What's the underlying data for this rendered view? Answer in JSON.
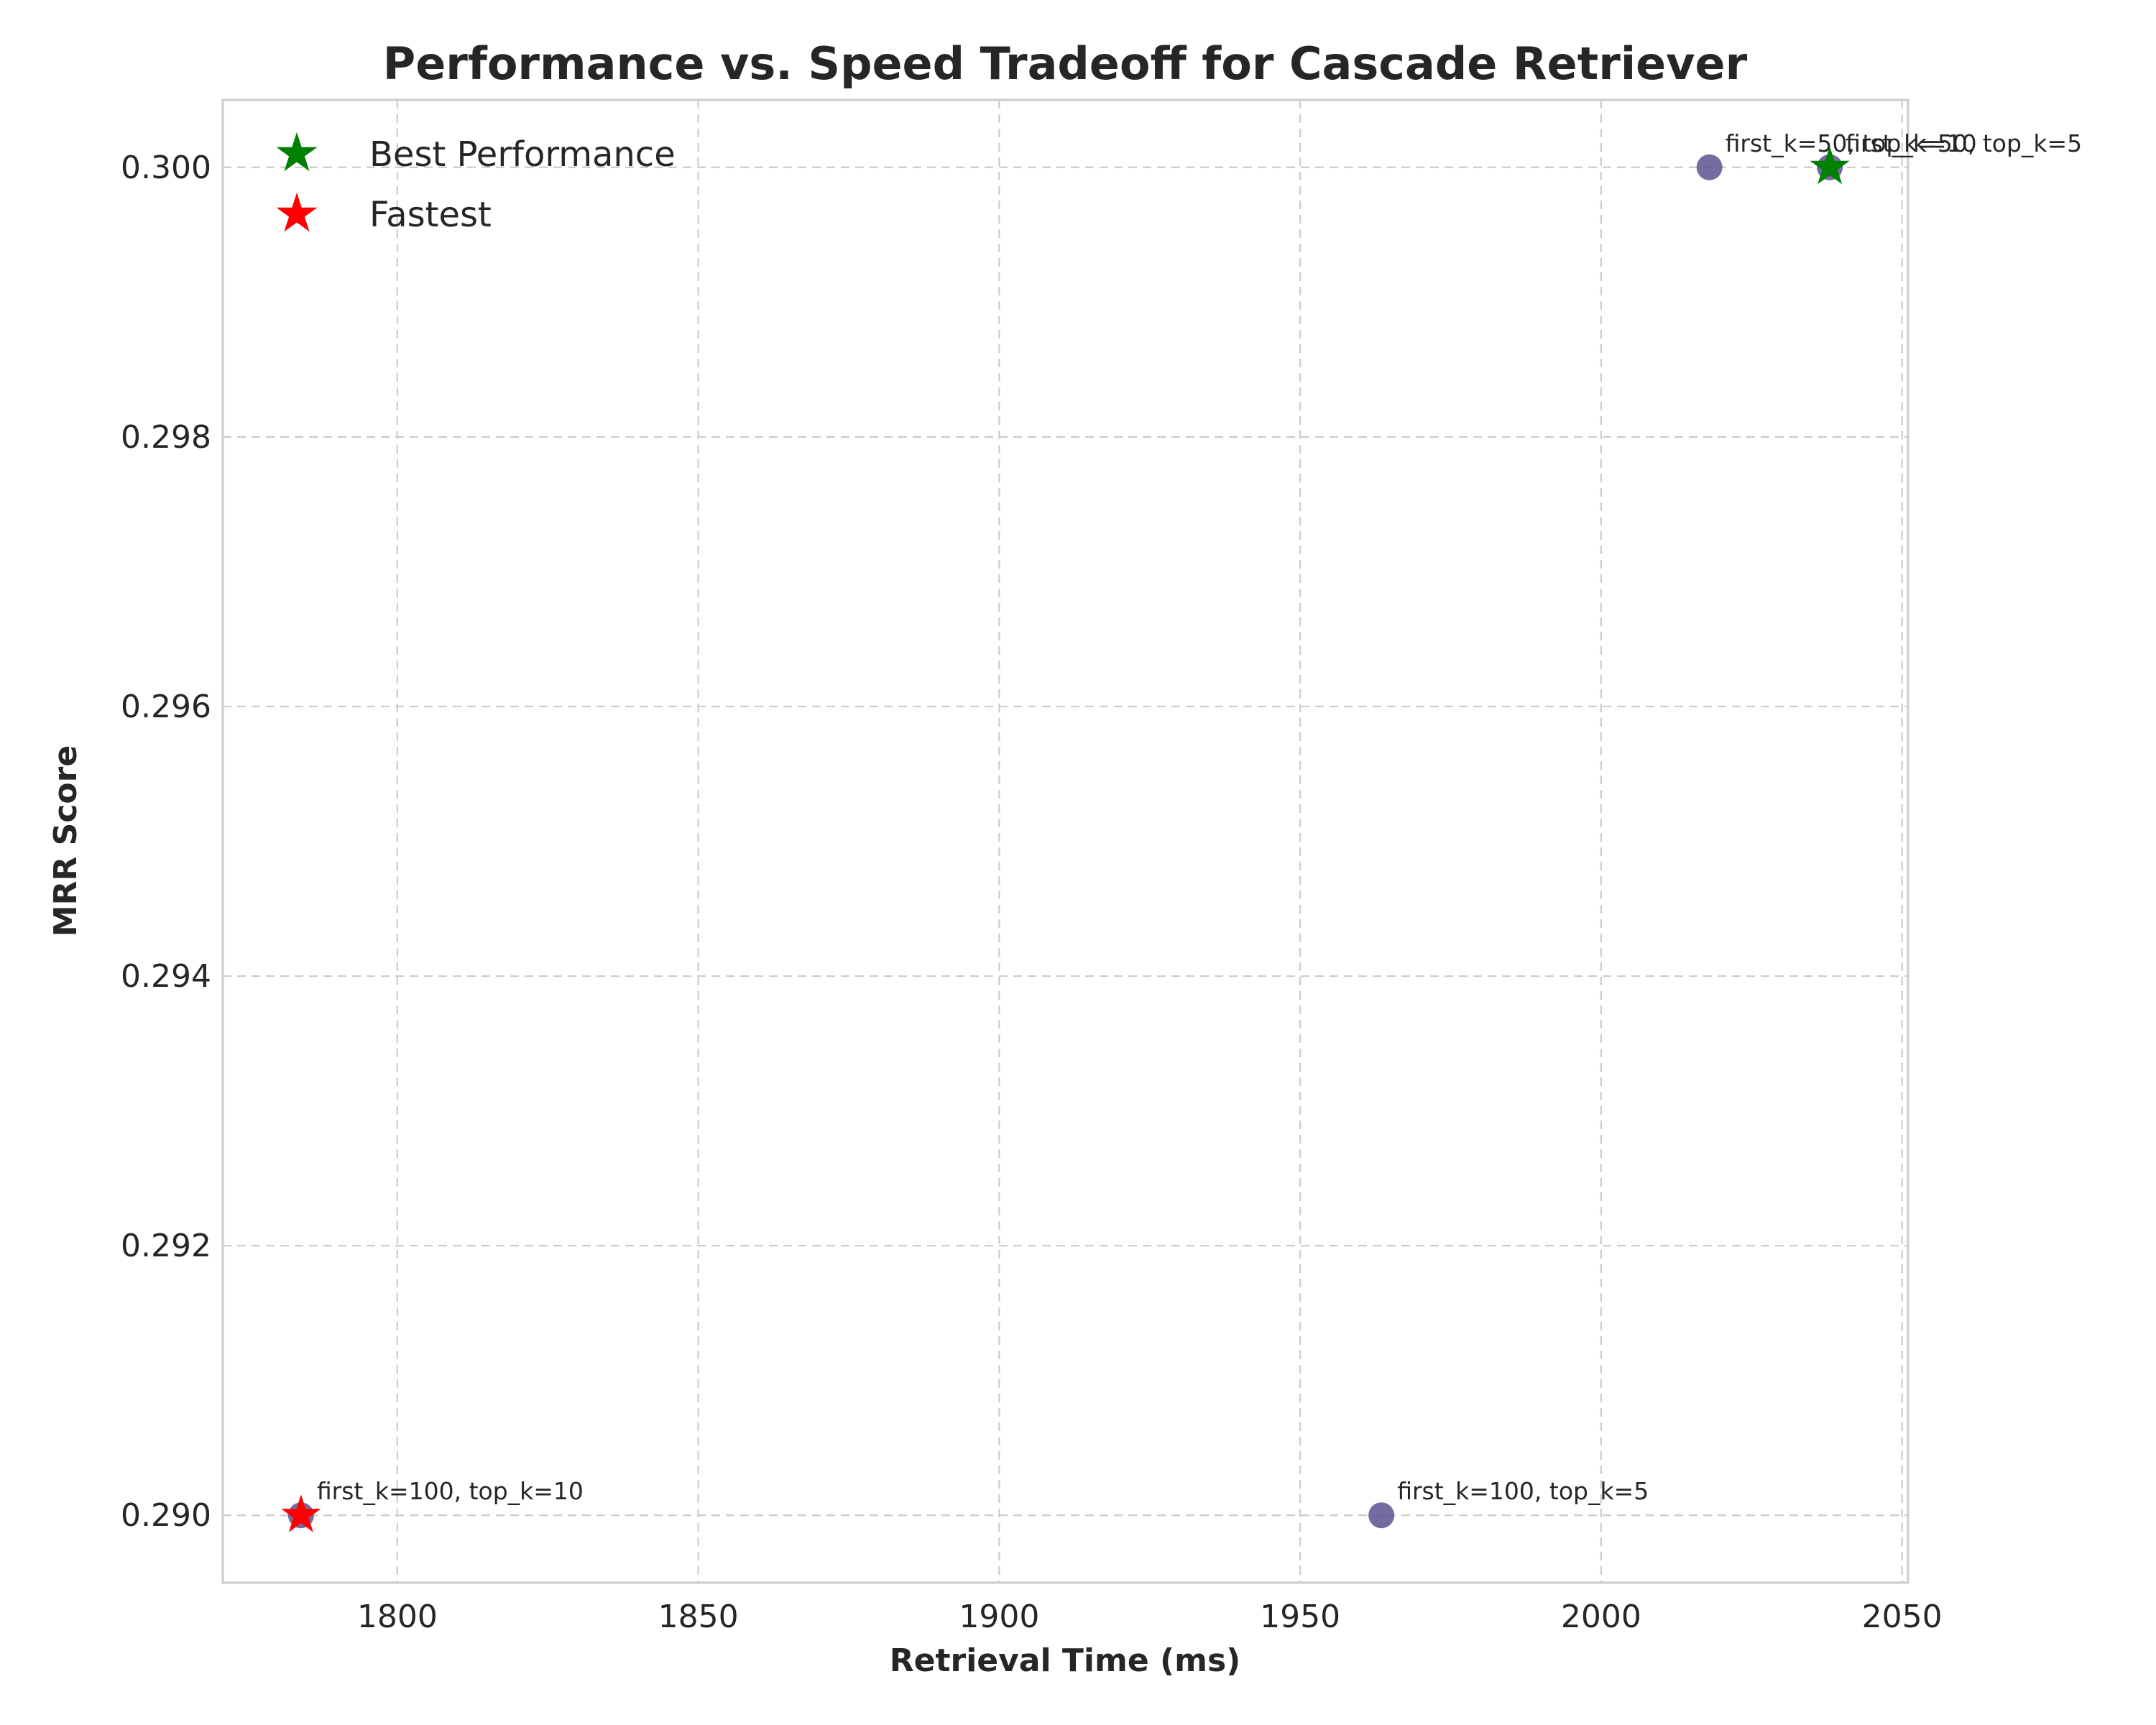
{
  "chart_data": {
    "type": "scatter",
    "title": "Performance vs. Speed Tradeoff for Cascade Retriever",
    "xlabel": "Retrieval Time (ms)",
    "ylabel": "MRR Score",
    "xlim": [
      1771,
      2051
    ],
    "ylim": [
      0.2895,
      0.3005
    ],
    "xticks": [
      "1800",
      "1850",
      "1900",
      "1950",
      "2000",
      "2050"
    ],
    "yticks": [
      "0.290",
      "0.292",
      "0.294",
      "0.296",
      "0.298",
      "0.300"
    ],
    "grid": true,
    "legend_position": "top-left",
    "points": [
      {
        "label": "first_k=100, top_k=10",
        "x": 1784,
        "y": 0.29
      },
      {
        "label": "first_k=100, top_k=5",
        "x": 1963.5,
        "y": 0.29
      },
      {
        "label": "first_k=50, top_k=10",
        "x": 2018,
        "y": 0.3
      },
      {
        "label": "first_k=50, top_k=5",
        "x": 2038,
        "y": 0.3
      }
    ],
    "highlights": [
      {
        "name": "Best Performance",
        "x": 2038,
        "y": 0.3,
        "color": "#008000"
      },
      {
        "name": "Fastest",
        "x": 1784,
        "y": 0.29,
        "color": "#ff0000"
      }
    ],
    "point_color": "#5b5290"
  }
}
